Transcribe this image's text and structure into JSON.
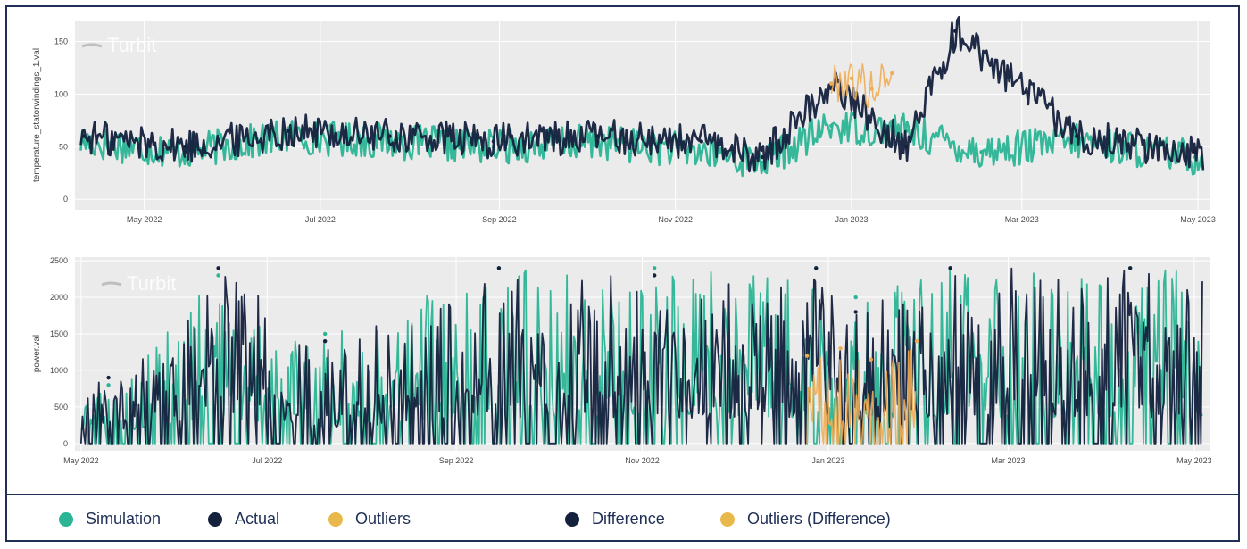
{
  "chart_data": [
    {
      "type": "scatter",
      "logo": "Turbit",
      "xlabel": "",
      "ylabel": "temperature_statorwindings_1.val",
      "x_tick_labels": [
        "May 2022",
        "Jul 2022",
        "Sep 2022",
        "Nov 2022",
        "Jan 2023",
        "Mar 2023",
        "May 2023"
      ],
      "x_ticks": [
        "2022-05-01",
        "2022-07-01",
        "2022-09-01",
        "2022-11-01",
        "2023-01-01",
        "2023-03-01",
        "2023-05-01"
      ],
      "xlim": [
        "2022-04-07",
        "2023-05-05"
      ],
      "y_ticks": [
        0,
        50,
        100,
        150
      ],
      "ylim": [
        -10,
        170
      ],
      "grid": true,
      "series": [
        {
          "name": "Simulation",
          "color": "#2bb595",
          "x": [
            "2022-04-10",
            "2022-05-15",
            "2022-06-20",
            "2022-07-25",
            "2022-08-30",
            "2022-10-05",
            "2022-11-10",
            "2022-12-01",
            "2022-12-25",
            "2023-01-20",
            "2023-02-15",
            "2023-03-20",
            "2023-04-30"
          ],
          "y": [
            55,
            45,
            60,
            55,
            50,
            55,
            45,
            35,
            70,
            65,
            45,
            55,
            40
          ]
        },
        {
          "name": "Actual",
          "color": "#14213d",
          "x": [
            "2022-04-10",
            "2022-05-15",
            "2022-06-20",
            "2022-07-25",
            "2022-08-30",
            "2022-10-05",
            "2022-11-10",
            "2022-12-01",
            "2022-12-25",
            "2023-01-20",
            "2023-02-06",
            "2023-03-20",
            "2023-04-30"
          ],
          "y": [
            60,
            50,
            65,
            60,
            55,
            60,
            55,
            40,
            110,
            50,
            160,
            60,
            45
          ]
        },
        {
          "name": "Outliers",
          "color": "#f0ad55",
          "x": [
            "2022-12-25",
            "2023-01-01",
            "2023-01-08",
            "2023-01-15"
          ],
          "y": [
            110,
            115,
            105,
            120
          ]
        }
      ]
    },
    {
      "type": "scatter",
      "logo": "Turbit",
      "xlabel": "",
      "ylabel": "power.val",
      "x_tick_labels": [
        "May 2022",
        "Jul 2022",
        "Sep 2022",
        "Nov 2022",
        "Jan 2023",
        "Mar 2023",
        "May 2023"
      ],
      "x_ticks": [
        "2022-05-01",
        "2022-07-01",
        "2022-09-01",
        "2022-11-01",
        "2023-01-01",
        "2023-03-01",
        "2023-05-01"
      ],
      "xlim": [
        "2022-04-29",
        "2023-05-06"
      ],
      "y_ticks": [
        0,
        500,
        1000,
        1500,
        2000,
        2500
      ],
      "ylim": [
        -100,
        2550
      ],
      "grid": true,
      "series": [
        {
          "name": "Simulation",
          "color": "#2bb595",
          "x": [
            "2022-05-10",
            "2022-06-15",
            "2022-07-20",
            "2022-09-15",
            "2022-11-05",
            "2022-12-28",
            "2023-01-10",
            "2023-02-10",
            "2023-04-10"
          ],
          "y": [
            800,
            2300,
            1500,
            2400,
            2400,
            2400,
            2000,
            2400,
            2400
          ]
        },
        {
          "name": "Actual",
          "color": "#14213d",
          "x": [
            "2022-05-10",
            "2022-06-15",
            "2022-07-20",
            "2022-09-15",
            "2022-11-05",
            "2022-12-28",
            "2023-01-10",
            "2023-02-10",
            "2023-04-10"
          ],
          "y": [
            900,
            2400,
            1400,
            2400,
            2300,
            2400,
            1800,
            2400,
            2400
          ]
        },
        {
          "name": "Outliers",
          "color": "#f0ad55",
          "x": [
            "2022-12-25",
            "2023-01-05",
            "2023-01-15",
            "2023-01-30"
          ],
          "y": [
            1200,
            1300,
            1150,
            1400
          ]
        }
      ]
    }
  ],
  "legend": [
    {
      "label": "Simulation",
      "color": "#2bb595"
    },
    {
      "label": "Actual",
      "color": "#14213d"
    },
    {
      "label": "Outliers",
      "color": "#e9b84a"
    },
    {
      "label": "Difference",
      "color": "#14213d"
    },
    {
      "label": "Outliers (Difference)",
      "color": "#e9b84a"
    }
  ]
}
